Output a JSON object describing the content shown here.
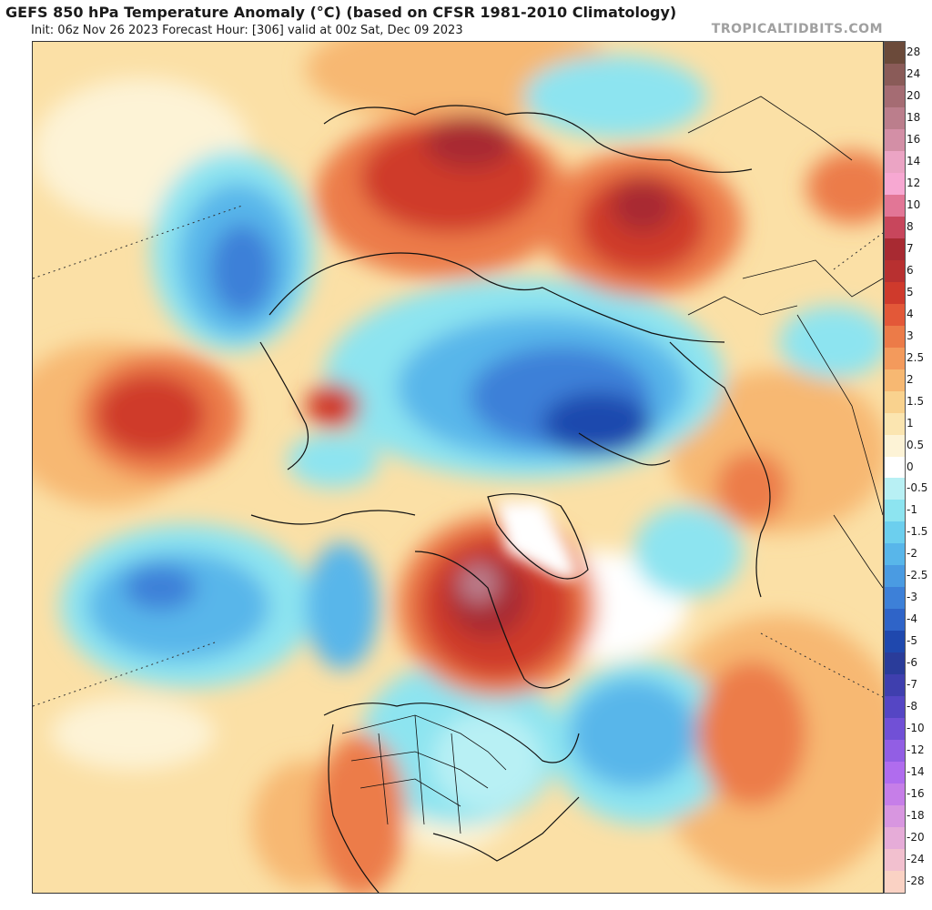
{
  "header": {
    "title": "GEFS 850 hPa Temperature Anomaly (°C) (based on CFSR 1981-2010 Climatology)",
    "subtitle": "Init: 06z Nov 26 2023   Forecast Hour: [306]   valid at 00z Sat, Dec 09 2023",
    "credit": "TROPICALTIDBITS.COM"
  },
  "colorbar": {
    "levels": [
      {
        "label": "28",
        "color": "#6b4a3a"
      },
      {
        "label": "24",
        "color": "#8a5b58"
      },
      {
        "label": "20",
        "color": "#a56c73"
      },
      {
        "label": "18",
        "color": "#bb7e8c"
      },
      {
        "label": "16",
        "color": "#d38fa6"
      },
      {
        "label": "14",
        "color": "#eba4c4"
      },
      {
        "label": "12",
        "color": "#f7a8d2"
      },
      {
        "label": "10",
        "color": "#e27696"
      },
      {
        "label": "8",
        "color": "#c8465c"
      },
      {
        "label": "7",
        "color": "#a82a32"
      },
      {
        "label": "6",
        "color": "#b83030"
      },
      {
        "label": "5",
        "color": "#cf3a2c"
      },
      {
        "label": "4",
        "color": "#e35838"
      },
      {
        "label": "3",
        "color": "#ec7b48"
      },
      {
        "label": "2.5",
        "color": "#f39a5c"
      },
      {
        "label": "2",
        "color": "#f7b872"
      },
      {
        "label": "1.5",
        "color": "#f9d28e"
      },
      {
        "label": "1",
        "color": "#fbe5b0"
      },
      {
        "label": "0.5",
        "color": "#fdf3d6"
      },
      {
        "label": "0",
        "color": "#ffffff"
      },
      {
        "label": "-0.5",
        "color": "#b8f0f4"
      },
      {
        "label": "-1",
        "color": "#8de4f0"
      },
      {
        "label": "-1.5",
        "color": "#6ccfee"
      },
      {
        "label": "-2",
        "color": "#58b6ea"
      },
      {
        "label": "-2.5",
        "color": "#4a9be2"
      },
      {
        "label": "-3",
        "color": "#3d80d8"
      },
      {
        "label": "-4",
        "color": "#2f64c8"
      },
      {
        "label": "-5",
        "color": "#1f48ae"
      },
      {
        "label": "-6",
        "color": "#2a3c9a"
      },
      {
        "label": "-7",
        "color": "#3f3fae"
      },
      {
        "label": "-8",
        "color": "#5546c4"
      },
      {
        "label": "-10",
        "color": "#7150d6"
      },
      {
        "label": "-12",
        "color": "#925ee4"
      },
      {
        "label": "-14",
        "color": "#b06cee"
      },
      {
        "label": "-16",
        "color": "#c67ee8"
      },
      {
        "label": "-18",
        "color": "#d896e0"
      },
      {
        "label": "-20",
        "color": "#e6acd8"
      },
      {
        "label": "-24",
        "color": "#f2c0cf"
      },
      {
        "label": "-28",
        "color": "#fad2c4"
      }
    ]
  },
  "map": {
    "region": "Northern Hemisphere polar stereographic",
    "palette": {
      "warm_1": "#fbe0a6",
      "warm_2": "#f7b872",
      "warm_3": "#ec7b48",
      "warm_4": "#cf3a2c",
      "warm_5": "#a82a32",
      "cool_1": "#8de4f0",
      "cool_2": "#58b6ea",
      "cool_3": "#3d80d8",
      "cool_4": "#1f48ae",
      "neutral": "#ffffff",
      "coast": "#111111"
    }
  }
}
